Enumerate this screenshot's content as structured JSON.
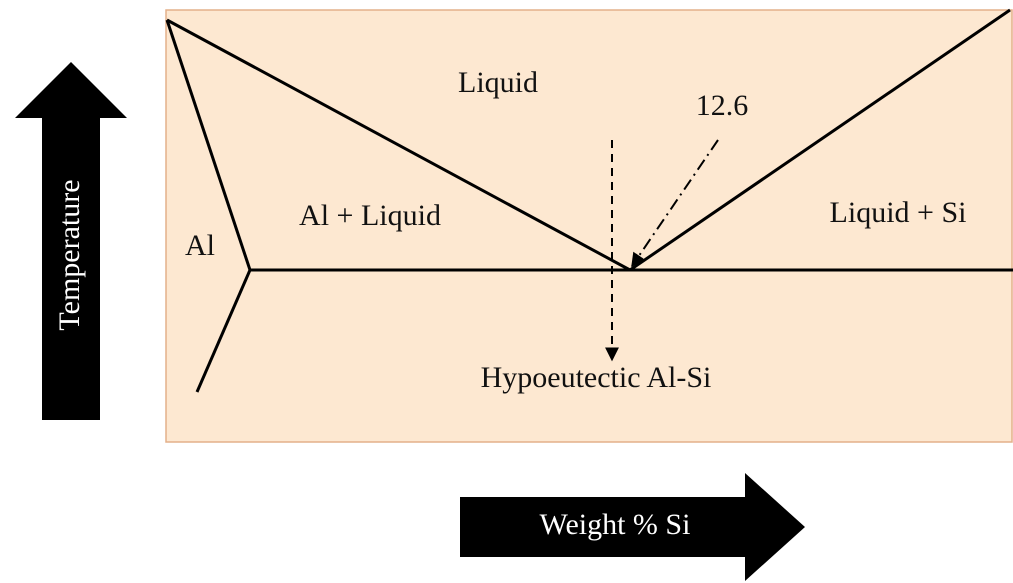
{
  "diagram": {
    "regions": [
      "Liquid",
      "Al + Liquid",
      "Liquid + Si",
      "Al"
    ],
    "eutectic_label": "12.6",
    "arrow_label": "Hypoeutectic Al-Si"
  },
  "axes": {
    "y_label": "Temperature",
    "x_label": "Weight % Si"
  }
}
